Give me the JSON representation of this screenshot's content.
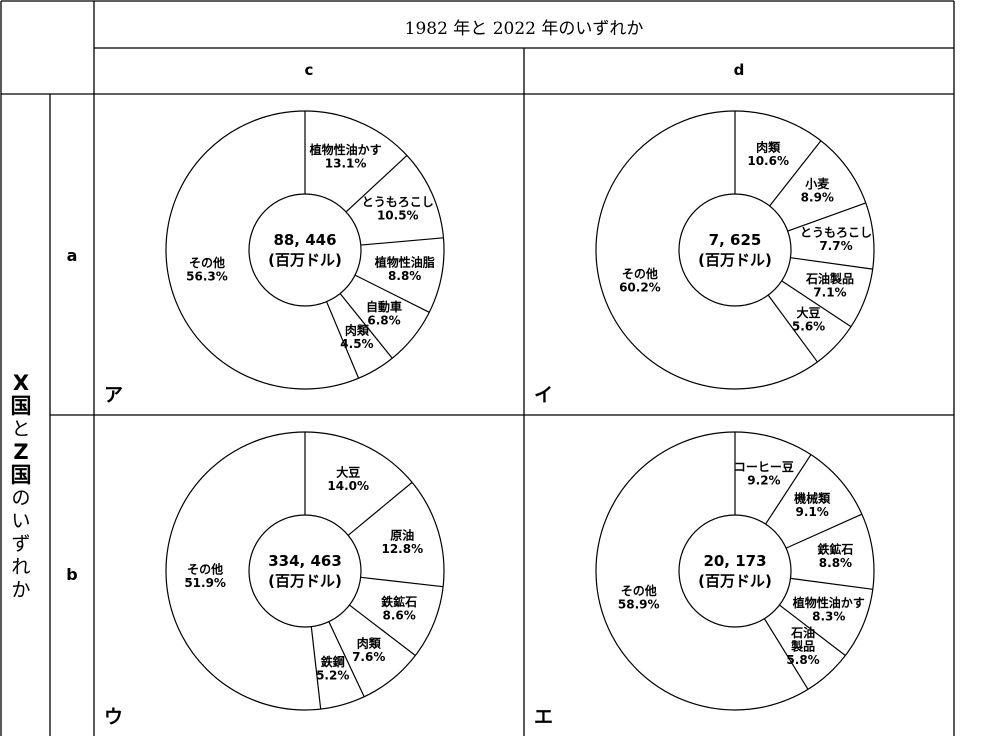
{
  "header": {
    "title": "1982 年と 2022 年のいずれか"
  },
  "columns": [
    "c",
    "d"
  ],
  "rows": [
    "a",
    "b"
  ],
  "row_group_label": "X国とZ国のいずれか",
  "row_group_chars": [
    "X",
    "国",
    "と",
    "Z",
    "国",
    "の",
    "い",
    "ず",
    "れ",
    "か"
  ],
  "chart_data": [
    {
      "type": "pie",
      "panel_label": "ア",
      "row": "a",
      "column": "c",
      "total": "88, 446",
      "unit": "(百万ドル)",
      "slices": [
        {
          "label": "植物性油かす",
          "value": 13.1,
          "value_label": "13.1%"
        },
        {
          "label": "とうもろこし",
          "value": 10.5,
          "value_label": "10.5%"
        },
        {
          "label": "植物性油脂",
          "value": 8.8,
          "value_label": "8.8%"
        },
        {
          "label": "自動車",
          "value": 6.8,
          "value_label": "6.8%"
        },
        {
          "label": "肉類",
          "value": 4.5,
          "value_label": "4.5%"
        },
        {
          "label": "その他",
          "value": 56.3,
          "value_label": "56.3%"
        }
      ]
    },
    {
      "type": "pie",
      "panel_label": "イ",
      "row": "a",
      "column": "d",
      "total": "7, 625",
      "unit": "(百万ドル)",
      "slices": [
        {
          "label": "肉類",
          "value": 10.6,
          "value_label": "10.6%"
        },
        {
          "label": "小麦",
          "value": 8.9,
          "value_label": "8.9%"
        },
        {
          "label": "とうもろこし",
          "value": 7.7,
          "value_label": "7.7%"
        },
        {
          "label": "石油製品",
          "value": 7.1,
          "value_label": "7.1%"
        },
        {
          "label": "大豆",
          "value": 5.6,
          "value_label": "5.6%"
        },
        {
          "label": "その他",
          "value": 60.2,
          "value_label": "60.2%"
        }
      ]
    },
    {
      "type": "pie",
      "panel_label": "ウ",
      "row": "b",
      "column": "c",
      "total": "334, 463",
      "unit": "(百万ドル)",
      "slices": [
        {
          "label": "大豆",
          "value": 14.0,
          "value_label": "14.0%"
        },
        {
          "label": "原油",
          "value": 12.8,
          "value_label": "12.8%"
        },
        {
          "label": "鉄鉱石",
          "value": 8.6,
          "value_label": "8.6%"
        },
        {
          "label": "肉類",
          "value": 7.6,
          "value_label": "7.6%"
        },
        {
          "label": "鉄鋼",
          "value": 5.2,
          "value_label": "5.2%"
        },
        {
          "label": "その他",
          "value": 51.9,
          "value_label": "51.9%"
        }
      ]
    },
    {
      "type": "pie",
      "panel_label": "エ",
      "row": "b",
      "column": "d",
      "total": "20, 173",
      "unit": "(百万ドル)",
      "slices": [
        {
          "label": "コーヒー豆",
          "value": 9.2,
          "value_label": "9.2%"
        },
        {
          "label": "機械類",
          "value": 9.1,
          "value_label": "9.1%"
        },
        {
          "label": "鉄鉱石",
          "value": 8.8,
          "value_label": "8.8%"
        },
        {
          "label": "植物性油かす",
          "value": 8.3,
          "value_label": "8.3%"
        },
        {
          "label": "石油製品",
          "value": 5.8,
          "value_label": "5.8%"
        },
        {
          "label": "その他",
          "value": 58.9,
          "value_label": "58.9%"
        }
      ]
    }
  ]
}
